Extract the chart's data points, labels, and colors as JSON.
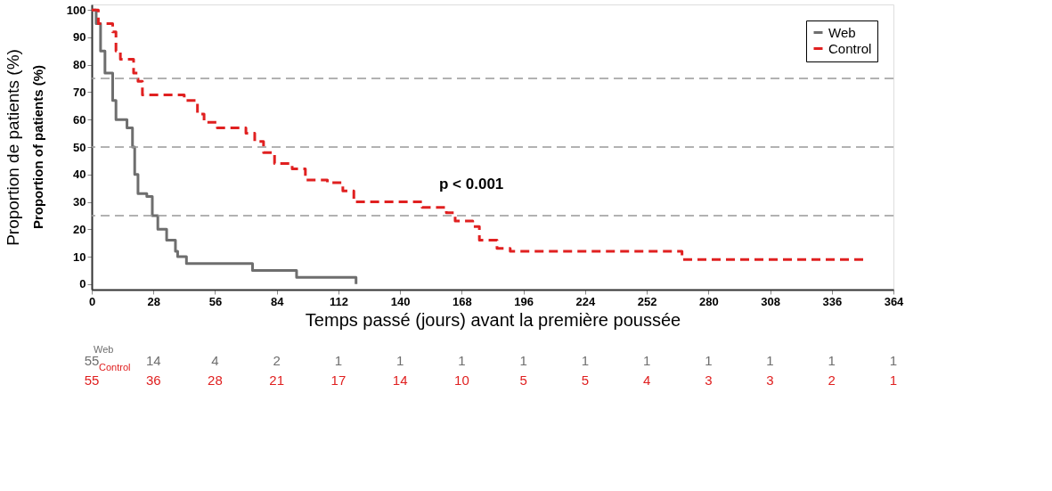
{
  "chart_data": {
    "type": "step",
    "xlabel": "Temps passé (jours) avant la première poussée",
    "ylabel": "Proportion de patients (%)",
    "xlim": [
      0,
      364
    ],
    "xticks": [
      0,
      28,
      56,
      84,
      112,
      140,
      168,
      196,
      224,
      252,
      280,
      308,
      336,
      364
    ],
    "ylim": [
      -2,
      102
    ],
    "yticks": [
      0,
      10,
      20,
      30,
      40,
      50,
      60,
      70,
      80,
      90,
      100
    ],
    "grid": false,
    "legend": "top right",
    "marker": "none",
    "series": [
      {
        "name": "Web",
        "color": "#6e6e6e",
        "line_style": "solid",
        "x": [
          0,
          2,
          4,
          6,
          9.5,
          11,
          16,
          18.5,
          19.5,
          21,
          25,
          27.5,
          30,
          34,
          38,
          39,
          43,
          73,
          93,
          120,
          120
        ],
        "values": [
          100,
          95,
          85,
          77,
          67,
          60,
          57,
          50,
          40,
          33,
          32,
          25,
          20,
          16,
          12,
          10,
          7.5,
          5,
          2.5,
          2.5,
          0
        ]
      },
      {
        "name": "Control",
        "color": "#e02020",
        "line_style": "dashed",
        "x": [
          0,
          3,
          9.5,
          11,
          13,
          19,
          21,
          23,
          42,
          48,
          51,
          57,
          70,
          74,
          78,
          83,
          91,
          97,
          107,
          114,
          119,
          150,
          161,
          165,
          173,
          176,
          184,
          190,
          268,
          351
        ],
        "values": [
          100,
          95,
          92,
          85,
          82,
          77,
          74,
          69,
          67,
          62,
          59,
          57,
          55,
          52,
          48,
          44,
          42,
          38,
          37,
          34,
          30,
          28,
          26,
          23,
          21,
          16,
          13,
          12,
          9,
          9
        ]
      }
    ],
    "ref_lines": [
      {
        "axis": "y",
        "value": 25,
        "color": "#999999",
        "line_style": "dashed"
      },
      {
        "axis": "y",
        "value": 50,
        "color": "#999999",
        "line_style": "dashed"
      },
      {
        "axis": "y",
        "value": 75,
        "color": "#999999",
        "line_style": "dashed"
      }
    ],
    "annotations": [
      "p < 0.001",
      "Proportion of patients (%)",
      "Web",
      "Control",
      "55 14 4 2 1 1 1 1 1 1 1 1 1 1",
      "55 36 28 21 17 14 10 5 5 4 3 3 2 1"
    ]
  }
}
